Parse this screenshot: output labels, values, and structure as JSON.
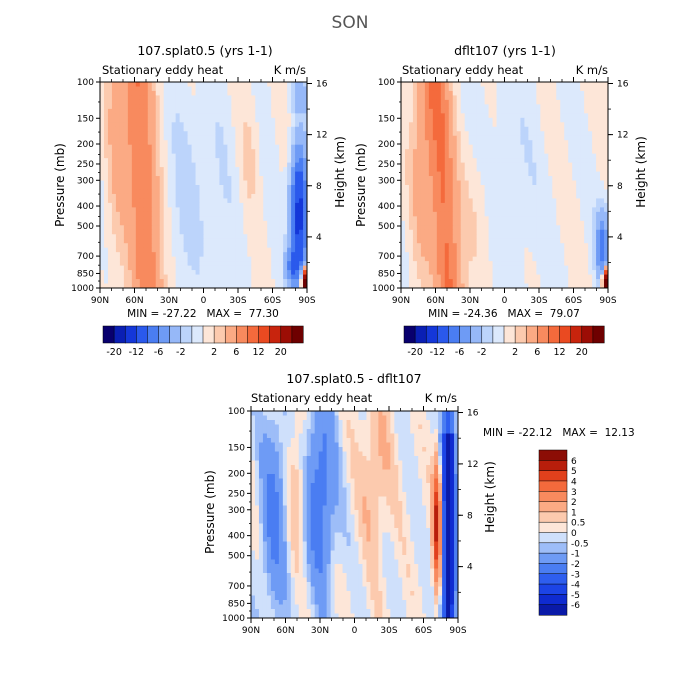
{
  "page_title": "SON",
  "colors": {
    "neg": [
      "#08006e",
      "#0a1fb4",
      "#1437d9",
      "#2a59ec",
      "#4a7df2",
      "#6e9bf5",
      "#96b8f8",
      "#bcd4fb",
      "#dce9fc"
    ],
    "pos": [
      "#fde6d8",
      "#fccaae",
      "#fbaa84",
      "#f88a5e",
      "#f46a3c",
      "#ea4a21",
      "#c8240d",
      "#9c0d05",
      "#6e0000"
    ]
  },
  "chart_data": [
    {
      "type": "heatmap",
      "title": "107.splat0.5 (yrs 1-1)",
      "subtitle_left": "Stationary eddy heat",
      "subtitle_right": "K m/s",
      "xlabel": "",
      "ylabel": "Pressure (mb)",
      "ylabel_right": "Height (km)",
      "x_ticks": [
        "90N",
        "60N",
        "30N",
        "0",
        "30S",
        "60S",
        "90S"
      ],
      "y_ticks": [
        "100",
        "150",
        "200",
        "250",
        "300",
        "400",
        "500",
        "700",
        "850",
        "1000"
      ],
      "y_right_ticks": [
        "16",
        "12",
        "8",
        "4"
      ],
      "stats": "MIN = -27.22   MAX =  77.30",
      "colorbar": {
        "orientation": "horizontal",
        "labels": [
          "-20",
          "-12",
          "-6",
          "-2",
          "2",
          "6",
          "12",
          "20"
        ]
      },
      "features": [
        {
          "lat": 55,
          "pres": 500,
          "value": 6
        },
        {
          "lat": -80,
          "pres": 500,
          "value": -12
        },
        {
          "lat": -88,
          "pres": 950,
          "value": 20
        }
      ]
    },
    {
      "type": "heatmap",
      "title": "dflt107 (yrs 1-1)",
      "subtitle_left": "Stationary eddy heat",
      "subtitle_right": "K m/s",
      "xlabel": "",
      "ylabel": "Pressure (mb)",
      "ylabel_right": "Height (km)",
      "x_ticks": [
        "90N",
        "60N",
        "30N",
        "0",
        "30S",
        "60S",
        "90S"
      ],
      "y_ticks": [
        "100",
        "150",
        "200",
        "250",
        "300",
        "400",
        "500",
        "700",
        "850",
        "1000"
      ],
      "y_right_ticks": [
        "16",
        "12",
        "8",
        "4"
      ],
      "stats": "MIN = -24.36   MAX =  79.07",
      "colorbar": {
        "orientation": "horizontal",
        "labels": [
          "-20",
          "-12",
          "-6",
          "-2",
          "2",
          "6",
          "12",
          "20"
        ]
      },
      "features": [
        {
          "lat": 58,
          "pres": 300,
          "value": 6
        },
        {
          "lat": -85,
          "pres": 800,
          "value": -6
        },
        {
          "lat": -88,
          "pres": 950,
          "value": 20
        }
      ]
    },
    {
      "type": "heatmap",
      "title": "107.splat0.5 - dflt107",
      "subtitle_left": "Stationary eddy heat",
      "subtitle_right": "K m/s",
      "xlabel": "",
      "ylabel": "Pressure (mb)",
      "ylabel_right": "Height (km)",
      "x_ticks": [
        "90N",
        "60N",
        "30N",
        "0",
        "30S",
        "60S",
        "90S"
      ],
      "y_ticks": [
        "100",
        "150",
        "200",
        "250",
        "300",
        "400",
        "500",
        "700",
        "850",
        "1000"
      ],
      "y_right_ticks": [
        "16",
        "12",
        "8",
        "4"
      ],
      "stats": "MIN = -22.12   MAX =  12.13",
      "colorbar": {
        "orientation": "vertical",
        "labels": [
          "6",
          "5",
          "4",
          "3",
          "2",
          "1",
          "0.5",
          "0",
          "-0.5",
          "-1",
          "-2",
          "-3",
          "-4",
          "-5",
          "-6"
        ]
      },
      "features": [
        {
          "lat": 30,
          "pres": 300,
          "value": -3
        },
        {
          "lat": -72,
          "pres": 400,
          "value": 5
        },
        {
          "lat": -82,
          "pres": 500,
          "value": -6
        }
      ]
    }
  ]
}
